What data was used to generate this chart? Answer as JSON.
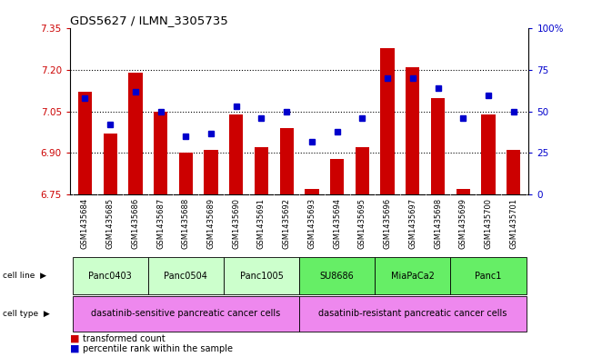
{
  "title": "GDS5627 / ILMN_3305735",
  "samples": [
    "GSM1435684",
    "GSM1435685",
    "GSM1435686",
    "GSM1435687",
    "GSM1435688",
    "GSM1435689",
    "GSM1435690",
    "GSM1435691",
    "GSM1435692",
    "GSM1435693",
    "GSM1435694",
    "GSM1435695",
    "GSM1435696",
    "GSM1435697",
    "GSM1435698",
    "GSM1435699",
    "GSM1435700",
    "GSM1435701"
  ],
  "bar_values": [
    7.12,
    6.97,
    7.19,
    7.05,
    6.9,
    6.91,
    7.04,
    6.92,
    6.99,
    6.77,
    6.88,
    6.92,
    7.28,
    7.21,
    7.1,
    6.77,
    7.04,
    6.91
  ],
  "percentile_values": [
    58,
    42,
    62,
    50,
    35,
    37,
    53,
    46,
    50,
    32,
    38,
    46,
    70,
    70,
    64,
    46,
    60,
    50
  ],
  "ylim_left": [
    6.75,
    7.35
  ],
  "ylim_right": [
    0,
    100
  ],
  "yticks_left": [
    6.75,
    6.9,
    7.05,
    7.2,
    7.35
  ],
  "ytick_labels_right": [
    "0",
    "25",
    "50",
    "75",
    "100%"
  ],
  "bar_color": "#cc0000",
  "dot_color": "#0000cc",
  "bar_bottom": 6.75,
  "cell_lines": [
    {
      "label": "Panc0403",
      "start": 0,
      "end": 2,
      "color": "#ccffcc"
    },
    {
      "label": "Panc0504",
      "start": 3,
      "end": 5,
      "color": "#ccffcc"
    },
    {
      "label": "Panc1005",
      "start": 6,
      "end": 8,
      "color": "#ccffcc"
    },
    {
      "label": "SU8686",
      "start": 9,
      "end": 11,
      "color": "#66ee66"
    },
    {
      "label": "MiaPaCa2",
      "start": 12,
      "end": 14,
      "color": "#66ee66"
    },
    {
      "label": "Panc1",
      "start": 15,
      "end": 17,
      "color": "#66ee66"
    }
  ],
  "cell_types": [
    {
      "label": "dasatinib-sensitive pancreatic cancer cells",
      "start": 0,
      "end": 8,
      "color": "#ee88ee"
    },
    {
      "label": "dasatinib-resistant pancreatic cancer cells",
      "start": 9,
      "end": 17,
      "color": "#ee88ee"
    }
  ],
  "legend_bar_label": "transformed count",
  "legend_dot_label": "percentile rank within the sample",
  "background_color": "#ffffff",
  "plot_bg_color": "#ffffff",
  "tick_label_color_left": "#cc0000",
  "tick_label_color_right": "#0000cc",
  "xtick_bg_color": "#cccccc"
}
